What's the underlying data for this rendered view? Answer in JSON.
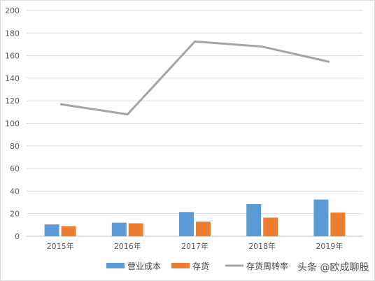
{
  "chart_data": {
    "type": "bar",
    "categories": [
      "2015年",
      "2016年",
      "2017年",
      "2018年",
      "2019年"
    ],
    "series": [
      {
        "name": "营业成本",
        "type": "bar",
        "color": "#5b9bd5",
        "values": [
          10.5,
          12,
          21.5,
          28.5,
          32.5
        ]
      },
      {
        "name": "存货",
        "type": "bar",
        "color": "#ed7d31",
        "values": [
          9,
          11.5,
          13,
          16.5,
          21
        ]
      },
      {
        "name": "存货周转率",
        "type": "line",
        "color": "#a5a5a5",
        "values": [
          117,
          108,
          172.5,
          168,
          154.5
        ]
      }
    ],
    "ylim": [
      0,
      200
    ],
    "yticks": [
      0,
      20,
      40,
      60,
      80,
      100,
      120,
      140,
      160,
      180,
      200
    ],
    "grid": true,
    "legend_position": "bottom"
  },
  "watermark": "头条 @欧成聊股"
}
